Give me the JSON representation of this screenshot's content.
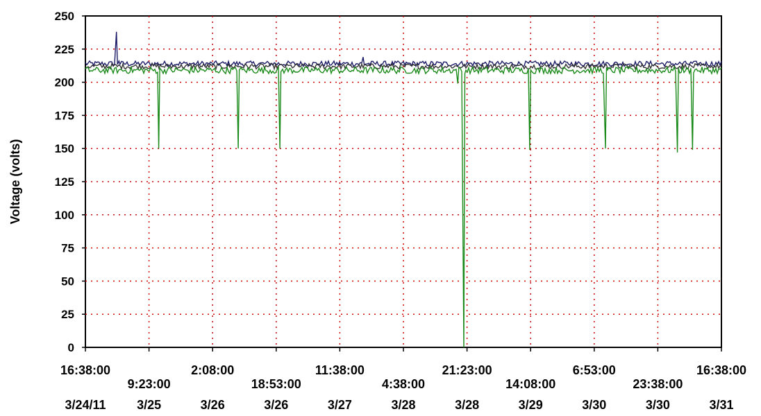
{
  "chart_data": {
    "type": "line",
    "title": "",
    "xlabel": "",
    "ylabel": "Voltage (volts)",
    "ylim": [
      0,
      250
    ],
    "yticks": [
      0,
      25,
      50,
      75,
      100,
      125,
      150,
      175,
      200,
      225,
      250
    ],
    "grid": true,
    "grid_style": "dotted",
    "grid_color": "#cc0000",
    "legend": "none",
    "x_ticks": [
      {
        "time": "16:38:00",
        "date": "3/24/11"
      },
      {
        "time": "9:23:00",
        "date": "3/25"
      },
      {
        "time": "2:08:00",
        "date": "3/26"
      },
      {
        "time": "18:53:00",
        "date": "3/26"
      },
      {
        "time": "11:38:00",
        "date": "3/27"
      },
      {
        "time": "4:38:00",
        "date": "3/28"
      },
      {
        "time": "21:23:00",
        "date": "3/28"
      },
      {
        "time": "14:08:00",
        "date": "3/29"
      },
      {
        "time": "6:53:00",
        "date": "3/30"
      },
      {
        "time": "23:38:00",
        "date": "3/30"
      },
      {
        "time": "16:38:00",
        "date": "3/31"
      }
    ],
    "series": [
      {
        "color": "#1a1a66",
        "baseline": 214,
        "points": [
          {
            "x": "3/24 16:38",
            "y": 214
          },
          {
            "x": "3/25 0:50",
            "y": 238
          },
          {
            "x": "3/25 1:30",
            "y": 216
          },
          {
            "x": "3/27 18:00",
            "y": 219
          },
          {
            "x": "3/31 16:38",
            "y": 214
          }
        ]
      },
      {
        "color": "#333333",
        "baseline": 212,
        "points": [
          {
            "x": "3/24 16:38",
            "y": 212
          },
          {
            "x": "3/31 16:38",
            "y": 212
          }
        ]
      },
      {
        "color": "#1a8a1a",
        "baseline": 209,
        "points": [
          {
            "x": "3/24 16:38",
            "y": 209
          },
          {
            "x": "3/25 12:00",
            "y": 150
          },
          {
            "x": "3/26 9:00",
            "y": 150
          },
          {
            "x": "3/26 20:00",
            "y": 150
          },
          {
            "x": "3/28 19:00",
            "y": 199
          },
          {
            "x": "3/28 20:35",
            "y": 0
          },
          {
            "x": "3/29 14:00",
            "y": 149
          },
          {
            "x": "3/30 10:00",
            "y": 150
          },
          {
            "x": "3/31 5:00",
            "y": 147
          },
          {
            "x": "3/31 9:00",
            "y": 149
          },
          {
            "x": "3/31 16:38",
            "y": 209
          }
        ]
      }
    ]
  }
}
